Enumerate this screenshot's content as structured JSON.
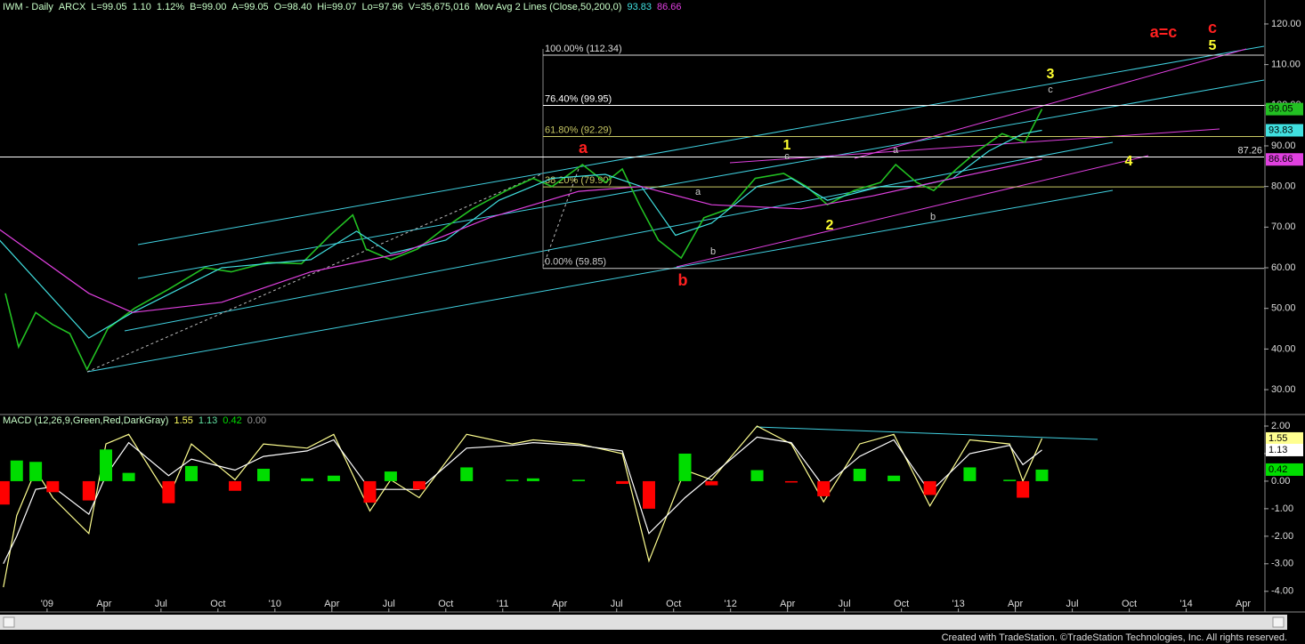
{
  "chart_data": [
    {
      "type": "line",
      "header": {
        "symbol": "IWM - Daily",
        "exchange": "ARCX",
        "last": "L=99.05",
        "change": "1.10",
        "change_pct": "1.12%",
        "bid": "B=99.00",
        "ask": "A=99.05",
        "open": "O=98.40",
        "high": "Hi=99.07",
        "low": "Lo=97.96",
        "volume": "V=35,675,016",
        "study": "Mov Avg 2 Lines (Close,50,200,0)"
      },
      "xlim": [
        -2.48,
        64.1
      ],
      "ylim": [
        24.1,
        125.9
      ],
      "yticks": [
        {
          "value": 30,
          "label": "30.00"
        },
        {
          "value": 40,
          "label": "40.00"
        },
        {
          "value": 50,
          "label": "50.00"
        },
        {
          "value": 60,
          "label": "60.00"
        },
        {
          "value": 70,
          "label": "70.00"
        },
        {
          "value": 80,
          "label": "80.00"
        },
        {
          "value": 90,
          "label": "90.00"
        },
        {
          "value": 100,
          "label": "100.00"
        },
        {
          "value": 110,
          "label": "110.00"
        },
        {
          "value": 120,
          "label": "120.00"
        }
      ],
      "series": [
        {
          "color": "#22c022",
          "x": [
            -2.2,
            -1.5,
            -0.6,
            0.3,
            1.2,
            2.1,
            3.2,
            4.6,
            6.4,
            8.3,
            9.7,
            11.6,
            13.4,
            14.9,
            16.1,
            16.8,
            18.1,
            19.5,
            21.0,
            22.4,
            24.2,
            25.6,
            26.6,
            28.2,
            29.4,
            30.3,
            31.2,
            32.2,
            33.4,
            34.6,
            35.9,
            37.3,
            38.8,
            40.0,
            41.1,
            42.5,
            43.9,
            44.7,
            45.8,
            46.7,
            47.9,
            49.0,
            50.3,
            51.5,
            52.4
          ],
          "values": [
            53.7,
            40.5,
            49,
            46,
            43.8,
            35,
            45,
            50,
            54.7,
            60,
            59,
            61.3,
            61,
            68,
            73,
            64.6,
            62,
            64.6,
            70,
            74.5,
            79,
            82,
            80,
            85.4,
            81,
            84.3,
            75.5,
            66.8,
            62.4,
            72.3,
            74.5,
            82,
            83.2,
            80,
            75.5,
            79,
            81,
            85.4,
            81,
            79,
            84.3,
            88.7,
            93,
            90.9,
            99.05
          ]
        },
        {
          "color": "#40e0e0",
          "x": [
            -2.5,
            2.2,
            4.5,
            9.2,
            13.9,
            16.3,
            18.1,
            21.0,
            23.8,
            26.6,
            29.4,
            31.3,
            33.1,
            35.0,
            37.4,
            39.2,
            41.1,
            43.9,
            45.8,
            47.7,
            49.6,
            51.4,
            52.4
          ],
          "values": [
            66.8,
            42.7,
            49,
            60,
            62,
            69,
            63.5,
            66.8,
            76.6,
            82,
            83,
            80,
            68,
            71,
            80,
            82,
            76.6,
            80,
            80,
            82,
            88.7,
            93,
            93.83
          ]
        },
        {
          "color": "#e040e0",
          "x": [
            -2.5,
            2.2,
            4.5,
            9.2,
            13.9,
            18.6,
            23.3,
            28.0,
            31.3,
            35.0,
            39.7,
            43.5,
            46.7,
            52.4
          ],
          "values": [
            69.4,
            53.7,
            49,
            51.5,
            59,
            63.5,
            72.3,
            78.8,
            80,
            75.5,
            74.5,
            77.7,
            81,
            86.66
          ]
        }
      ],
      "fib_levels": [
        {
          "label": "100.00% (112.34)",
          "value": 112.34,
          "color": "#dddddd"
        },
        {
          "label": "76.40% (99.95)",
          "value": 99.95,
          "color": "#ffffff"
        },
        {
          "label": "61.80% (92.29)",
          "value": 92.29,
          "color": "#c8c864"
        },
        {
          "label": "38.20% (79.90)",
          "value": 79.9,
          "color": "#c8c864"
        },
        {
          "label": "0.00% (59.85)",
          "value": 59.85,
          "color": "#cccccc"
        }
      ],
      "hline": {
        "value": 87.26,
        "color": "#ffffff"
      },
      "annotations": [
        {
          "text": "a",
          "color": "#ff2020"
        },
        {
          "text": "b",
          "color": "#ff2020"
        },
        {
          "text": "a=c",
          "color": "#ff2020"
        },
        {
          "text": "c",
          "color": "#ff2020"
        },
        {
          "text": "5",
          "color": "#ffff30"
        },
        {
          "text": "3",
          "color": "#ffff30"
        },
        {
          "text": "c",
          "color": "#cccccc"
        },
        {
          "text": "1",
          "color": "#ffff30"
        },
        {
          "text": "c",
          "color": "#cccccc"
        },
        {
          "text": "2",
          "color": "#ffff30"
        },
        {
          "text": "4",
          "color": "#ffff30"
        },
        {
          "text": "a",
          "color": "#cccccc"
        },
        {
          "text": "b",
          "color": "#cccccc"
        },
        {
          "text": "a",
          "color": "#cccccc"
        },
        {
          "text": "b",
          "color": "#cccccc"
        }
      ]
    },
    {
      "type": "line",
      "header": {
        "title": "MACD (12,26,9,Green,Red,DarkGray)"
      },
      "x": [
        -2.3,
        -1.6,
        -0.6,
        0.3,
        2.2,
        3.1,
        4.3,
        6.4,
        7.6,
        9.9,
        11.4,
        13.7,
        15.1,
        17.0,
        18.1,
        19.6,
        22.1,
        24.5,
        25.6,
        28.0,
        30.3,
        31.7,
        33.6,
        35.0,
        37.4,
        39.2,
        40.9,
        42.8,
        44.6,
        46.5,
        48.6,
        50.7,
        51.4,
        52.4
      ],
      "xlim": [
        -2.48,
        64.1
      ],
      "ylim": [
        -4.75,
        2.42
      ],
      "yticks": [
        {
          "value": -4,
          "label": "-4.00"
        },
        {
          "value": -3,
          "label": "-3.00"
        },
        {
          "value": -2,
          "label": "-2.00"
        },
        {
          "value": -1,
          "label": "-1.00"
        },
        {
          "value": 0,
          "label": "0.00"
        },
        {
          "value": 1,
          "label": "1.00"
        },
        {
          "value": 2,
          "label": "2.00"
        }
      ],
      "xticks": [
        {
          "value": 0,
          "label": "'09"
        },
        {
          "value": 3,
          "label": "Apr"
        },
        {
          "value": 6,
          "label": "Jul"
        },
        {
          "value": 9,
          "label": "Oct"
        },
        {
          "value": 12,
          "label": "'10"
        },
        {
          "value": 15,
          "label": "Apr"
        },
        {
          "value": 18,
          "label": "Jul"
        },
        {
          "value": 21,
          "label": "Oct"
        },
        {
          "value": 24,
          "label": "'11"
        },
        {
          "value": 27,
          "label": "Apr"
        },
        {
          "value": 30,
          "label": "Jul"
        },
        {
          "value": 33,
          "label": "Oct"
        },
        {
          "value": 36,
          "label": "'12"
        },
        {
          "value": 39,
          "label": "Apr"
        },
        {
          "value": 42,
          "label": "Jul"
        },
        {
          "value": 45,
          "label": "Oct"
        },
        {
          "value": 48,
          "label": "'13"
        },
        {
          "value": 51,
          "label": "Apr"
        },
        {
          "value": 54,
          "label": "Jul"
        },
        {
          "value": 57,
          "label": "Oct"
        },
        {
          "value": 60,
          "label": "'14"
        },
        {
          "value": 63,
          "label": "Apr"
        }
      ],
      "series": [
        {
          "color": "#ffff90",
          "values": [
            -3.85,
            -1.25,
            0.4,
            -0.6,
            -1.9,
            1.35,
            1.7,
            -0.6,
            1.35,
            0.05,
            1.35,
            1.2,
            1.7,
            -1.08,
            0.05,
            -0.6,
            1.7,
            1.35,
            1.5,
            1.35,
            1.0,
            -2.9,
            0.4,
            0.05,
            2.0,
            1.35,
            -0.75,
            1.35,
            1.7,
            -0.9,
            1.5,
            1.35,
            0.0,
            1.55
          ]
        },
        {
          "color": "#ffffff",
          "values": [
            -3.0,
            -2.0,
            -0.3,
            -0.2,
            -1.2,
            0.2,
            1.4,
            0.2,
            0.8,
            0.4,
            0.9,
            1.1,
            1.5,
            -0.3,
            -0.3,
            -0.3,
            1.2,
            1.3,
            1.4,
            1.3,
            1.1,
            -1.9,
            -0.6,
            0.2,
            1.6,
            1.4,
            -0.2,
            0.9,
            1.5,
            -0.4,
            1.0,
            1.3,
            0.6,
            1.13
          ]
        },
        {
          "type": "bar",
          "color": "#00dd00",
          "negative_color": "#ff0000",
          "values": [
            -0.85,
            0.75,
            0.7,
            -0.4,
            -0.7,
            1.15,
            0.3,
            -0.8,
            0.55,
            -0.35,
            0.45,
            0.1,
            0.2,
            -0.78,
            0.35,
            -0.3,
            0.5,
            0.05,
            0.1,
            0.05,
            -0.1,
            -1.0,
            1.0,
            -0.15,
            0.4,
            -0.05,
            -0.55,
            0.45,
            0.2,
            -0.5,
            0.5,
            0.05,
            -0.6,
            0.42
          ]
        }
      ]
    }
  ],
  "footer": "Created with TradeStation. ©TradeStation Technologies, Inc. All rights reserved."
}
